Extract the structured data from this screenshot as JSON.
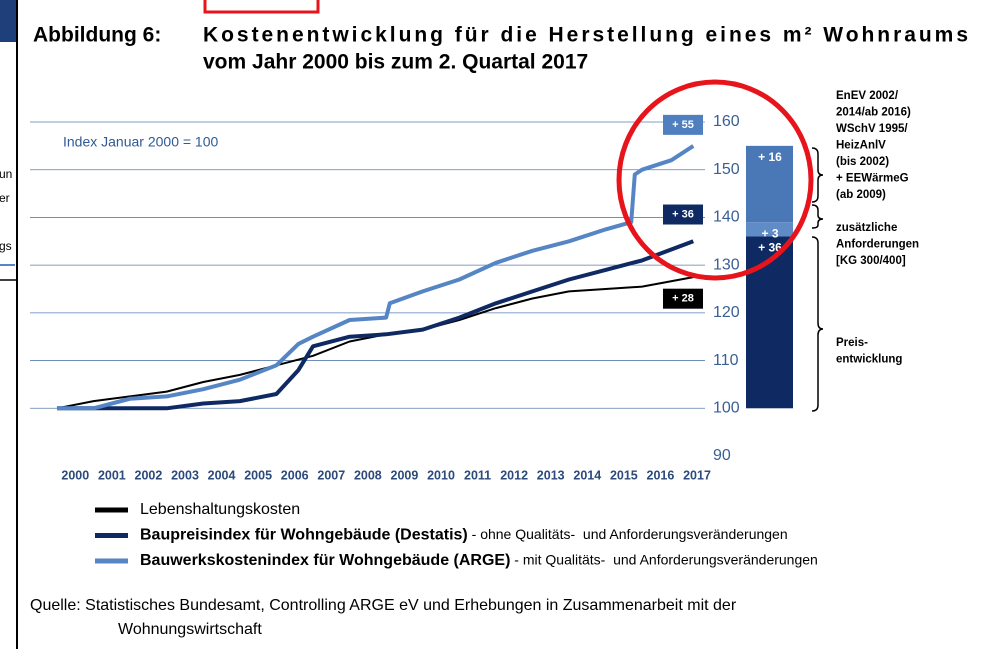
{
  "chart_data": {
    "type": "line",
    "figure_label": "Abbildung 6:",
    "title": [
      "Kostenentwicklung für die Herstellung eines m² Wohnraums",
      "vom Jahr 2000 bis zum 2. Quartal 2017"
    ],
    "annotation": "Index Januar 2000 = 100",
    "xlim": [
      2000,
      2017.5
    ],
    "xticks": [
      {
        "value": 2000.5,
        "label": "2000"
      },
      {
        "value": 2001.5,
        "label": "2001"
      },
      {
        "value": 2002.5,
        "label": "2002"
      },
      {
        "value": 2003.5,
        "label": "2003"
      },
      {
        "value": 2004.5,
        "label": "2004"
      },
      {
        "value": 2005.5,
        "label": "2005"
      },
      {
        "value": 2006.5,
        "label": "2006"
      },
      {
        "value": 2007.5,
        "label": "2007"
      },
      {
        "value": 2008.5,
        "label": "2008"
      },
      {
        "value": 2009.5,
        "label": "2009"
      },
      {
        "value": 2010.5,
        "label": "2010"
      },
      {
        "value": 2011.5,
        "label": "2011"
      },
      {
        "value": 2012.5,
        "label": "2012"
      },
      {
        "value": 2013.5,
        "label": "2013"
      },
      {
        "value": 2014.5,
        "label": "2014"
      },
      {
        "value": 2015.5,
        "label": "2015"
      },
      {
        "value": 2016.5,
        "label": "2016"
      },
      {
        "value": 2017.5,
        "label": "2017"
      }
    ],
    "ylim": [
      90,
      160
    ],
    "yticks": [
      90,
      100,
      110,
      120,
      130,
      140,
      150,
      160
    ],
    "grid": true,
    "series": [
      {
        "name": "Lebenshaltungskosten",
        "color": "#000000",
        "x": [
          2000,
          2001,
          2002,
          2003,
          2004,
          2005,
          2006,
          2007,
          2008,
          2009,
          2010,
          2011,
          2012,
          2013,
          2014,
          2015,
          2016,
          2017.4
        ],
        "values": [
          100,
          101.5,
          102.5,
          103.5,
          105.5,
          107,
          109,
          111,
          114,
          115.5,
          116.5,
          118.5,
          121,
          123,
          124.5,
          125,
          125.5,
          127.5
        ]
      },
      {
        "name": "Baupreisindex für Wohngebäude (Destatis)",
        "description": " - ohne Qualitäts-  und Anforderungsveränderungen",
        "color": "#0f2a63",
        "x": [
          2000,
          2001,
          2002,
          2003,
          2004,
          2005,
          2006,
          2006.6,
          2007,
          2008,
          2009,
          2010,
          2011,
          2012,
          2013,
          2014,
          2015,
          2016,
          2017.4
        ],
        "values": [
          100,
          100,
          100,
          100,
          101,
          101.5,
          103,
          108,
          113,
          115,
          115.5,
          116.5,
          119,
          122,
          124.5,
          127,
          129,
          131,
          135
        ]
      },
      {
        "name": "Bauwerkskostenindex für Wohngebäude (ARGE)",
        "description": " - mit Qualitäts-  und Anforderungsveränderungen",
        "color": "#5585c4",
        "x": [
          2000,
          2001,
          2002,
          2003,
          2004,
          2005,
          2006,
          2006.6,
          2007,
          2008,
          2009,
          2009.1,
          2010,
          2011,
          2012,
          2013,
          2014,
          2015,
          2015.7,
          2015.8,
          2016,
          2016.8,
          2017.4
        ],
        "values": [
          100,
          100,
          102,
          102.5,
          104,
          106,
          109,
          113.5,
          115,
          118.5,
          119,
          122,
          124.5,
          127,
          130.5,
          133,
          135,
          137.5,
          139,
          149,
          150,
          152,
          155
        ]
      }
    ],
    "end_labels": [
      {
        "value": 55,
        "label": "+ 55",
        "color": "#4f7fbf"
      },
      {
        "value": 36,
        "label": "+ 36",
        "color": "#0f2a63"
      },
      {
        "value": 28,
        "label": "+ 28",
        "color": "#000000"
      }
    ],
    "bar": {
      "base": 100,
      "segments": [
        {
          "value": 36,
          "label": "+ 36",
          "color": "#0f2a63"
        },
        {
          "value": 3,
          "label": "+ 3",
          "color": "#5f8cc6"
        },
        {
          "value": 16,
          "label": "+ 16",
          "color": "#4a78b6"
        }
      ]
    },
    "bar_notes": [
      [
        "EnEV 2002/",
        "2014/ab 2016)",
        "WSchV 1995/",
        "HeizAnlV",
        "(bis 2002)",
        "+ EEWärmeG",
        "(ab 2009)"
      ],
      [
        "zusätzliche",
        "Anforderungen",
        "[KG 300/400]"
      ],
      [
        "Preis-",
        "entwicklung"
      ]
    ],
    "source": [
      "Quelle: Statistisches Bundesamt, Controlling ARGE eV und Erhebungen in Zusammenarbeit mit der",
      "Wohnungswirtschaft"
    ],
    "background_fragments": [
      "un",
      "er",
      "gs"
    ]
  }
}
